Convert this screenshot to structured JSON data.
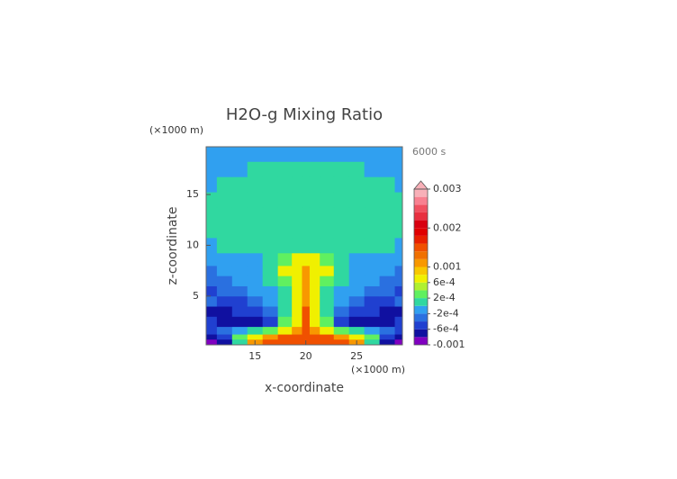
{
  "chart_data": {
    "type": "contour",
    "title": "H2O-g Mixing Ratio",
    "annotation": "6000 s",
    "x_label": "x-coordinate",
    "y_label": "z-coordinate",
    "x_unit": "(×1000 m)",
    "y_unit": "(×1000 m)",
    "xlim": [
      10.2,
      29.5
    ],
    "ylim": [
      0.2,
      19.7
    ],
    "xticks": [
      15,
      20,
      25
    ],
    "yticks": [
      5,
      10,
      15
    ],
    "x": [
      10.5,
      12,
      13.5,
      15,
      16.5,
      18,
      19.25,
      20,
      20.75,
      22,
      23.5,
      25,
      26.5,
      28,
      29.5
    ],
    "z": [
      0.5,
      1,
      1.5,
      2.5,
      3.5,
      4.5,
      5.5,
      6.5,
      7.5,
      8.5,
      10,
      11.5,
      13,
      14.5,
      16,
      17.5,
      19
    ],
    "values": [
      [
        -0.0009,
        -0.0007,
        0.0001,
        0.0011,
        0.0015,
        0.0015,
        0.0015,
        0.0015,
        0.0015,
        0.0015,
        0.0015,
        0.0011,
        0.0001,
        -0.0007,
        -0.0009
      ],
      [
        -0.0007,
        -0.0005,
        0.0003,
        0.0007,
        0.0011,
        0.0015,
        0.0015,
        0.0015,
        0.0015,
        0.0015,
        0.0011,
        0.0007,
        0.0003,
        -0.0005,
        -0.0007
      ],
      [
        -0.0005,
        -0.0003,
        -0.0001,
        0.0001,
        0.0003,
        0.0007,
        0.0011,
        0.0015,
        0.0011,
        0.0007,
        0.0003,
        0.0001,
        -0.0001,
        -0.0003,
        -0.0005
      ],
      [
        -0.0005,
        -0.0007,
        -0.0007,
        -0.0007,
        -0.0005,
        0.0003,
        0.0007,
        0.0015,
        0.0007,
        0.0003,
        -0.0005,
        -0.0007,
        -0.0007,
        -0.0007,
        -0.0005
      ],
      [
        -0.0007,
        -0.0007,
        -0.0005,
        -0.0005,
        -0.0003,
        0.0001,
        0.0007,
        0.0015,
        0.0007,
        0.0001,
        -0.0003,
        -0.0005,
        -0.0005,
        -0.0007,
        -0.0007
      ],
      [
        -0.0003,
        -0.0005,
        -0.0005,
        -0.0003,
        -0.0001,
        0.0001,
        0.0007,
        0.0011,
        0.0007,
        0.0001,
        -0.0001,
        -0.0003,
        -0.0005,
        -0.0005,
        -0.0003
      ],
      [
        -0.0005,
        -0.0003,
        -0.0003,
        -0.0001,
        -0.0001,
        0.0001,
        0.0007,
        0.0011,
        0.0007,
        0.0001,
        -0.0001,
        -0.0001,
        -0.0003,
        -0.0003,
        -0.0005
      ],
      [
        -0.0003,
        -0.0003,
        -0.0001,
        -0.0001,
        0.0001,
        0.0003,
        0.0007,
        0.0011,
        0.0007,
        0.0003,
        0.0001,
        -0.0001,
        -0.0001,
        -0.0003,
        -0.0003
      ],
      [
        -0.0003,
        -0.0001,
        -0.0001,
        -0.0001,
        0.0001,
        0.0007,
        0.0007,
        0.0011,
        0.0007,
        0.0007,
        0.0001,
        -0.0001,
        -0.0001,
        -0.0001,
        -0.0003
      ],
      [
        -0.0001,
        -0.0001,
        -0.0001,
        -0.0001,
        0.0001,
        0.0003,
        0.0007,
        0.0007,
        0.0007,
        0.0003,
        0.0001,
        -0.0001,
        -0.0001,
        -0.0001,
        -0.0001
      ],
      [
        -0.0001,
        0.0001,
        0.0001,
        0.0001,
        0.0001,
        0.0001,
        0.0001,
        0.0001,
        0.0001,
        0.0001,
        0.0001,
        0.0001,
        0.0001,
        0.0001,
        -0.0001
      ],
      [
        0.0001,
        0.0001,
        0.0001,
        0.0001,
        0.0001,
        0.0001,
        0.0001,
        0.0001,
        0.0001,
        0.0001,
        0.0001,
        0.0001,
        0.0001,
        0.0001,
        0.0001
      ],
      [
        0.0001,
        0.0001,
        0.0001,
        0.0001,
        0.0001,
        0.0001,
        0.0001,
        0.0001,
        0.0001,
        0.0001,
        0.0001,
        0.0001,
        0.0001,
        0.0001,
        0.0001
      ],
      [
        0.0001,
        0.0001,
        0.0001,
        0.0001,
        0.0001,
        0.0001,
        0.0001,
        0.0001,
        0.0001,
        0.0001,
        0.0001,
        0.0001,
        0.0001,
        0.0001,
        0.0001
      ],
      [
        -0.0001,
        0.0001,
        0.0001,
        0.0001,
        0.0001,
        0.0001,
        0.0001,
        0.0001,
        0.0001,
        0.0001,
        0.0001,
        0.0001,
        0.0001,
        0.0001,
        -0.0001
      ],
      [
        -0.0001,
        -0.0001,
        -0.0001,
        0.0001,
        0.0001,
        0.0001,
        0.0001,
        0.0001,
        0.0001,
        0.0001,
        0.0001,
        0.0001,
        -0.0001,
        -0.0001,
        -0.0001
      ],
      [
        -0.0001,
        -0.0001,
        -0.0001,
        -0.0001,
        -0.0001,
        -0.0001,
        -0.0001,
        -0.0001,
        -0.0001,
        -0.0001,
        -0.0001,
        -0.0001,
        -0.0001,
        -0.0001,
        -0.0001
      ]
    ],
    "colorbar": {
      "extend": "max",
      "levels": [
        -0.001,
        -0.0008,
        -0.0006,
        -0.0004,
        -0.0002,
        0,
        0.0002,
        0.0004,
        0.0006,
        0.0008,
        0.001,
        0.0012,
        0.0014,
        0.0016,
        0.0018,
        0.002,
        0.0022,
        0.0024,
        0.0026,
        0.0028,
        0.003
      ],
      "colors": [
        "#8000c0",
        "#1010a0",
        "#2040d0",
        "#2a70e0",
        "#30a0f0",
        "#30d8a0",
        "#60f060",
        "#b0f030",
        "#f0f000",
        "#f8c800",
        "#f89800",
        "#f07000",
        "#f05000",
        "#e82000",
        "#e00000",
        "#d80010",
        "#e83040",
        "#f05060",
        "#f88090",
        "#f8b0b8"
      ],
      "ticks": [
        -0.001,
        {
          "value": -0.0006,
          "label": "-6e-4"
        },
        {
          "value": -0.0002,
          "label": "-2e-4"
        },
        {
          "value": 0.0002,
          "label": "2e-4"
        },
        {
          "value": 0.0006,
          "label": "6e-4"
        },
        0.001,
        0.002,
        0.003
      ]
    }
  }
}
